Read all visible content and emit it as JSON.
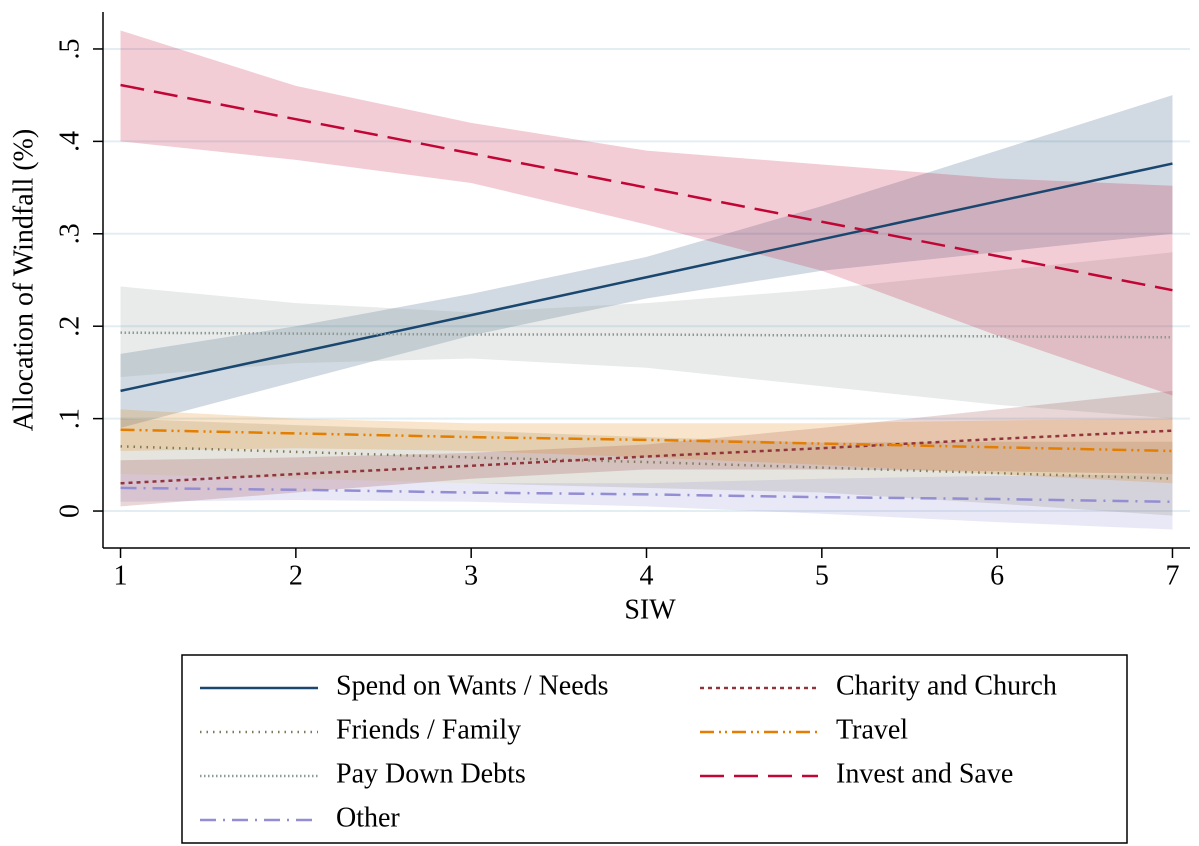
{
  "chart_data": {
    "type": "line",
    "x_label": "SIW",
    "y_label": "Allocation of Windfall (%)",
    "x": [
      1,
      2,
      3,
      4,
      5,
      6,
      7
    ],
    "xlim": [
      0.9,
      7.1
    ],
    "xticks": [
      1,
      2,
      3,
      4,
      5,
      6,
      7
    ],
    "ylim": [
      -0.04,
      0.54
    ],
    "yticks": [
      0,
      {
        "value": 0.1,
        "label": ".1"
      },
      {
        "value": 0.2,
        "label": ".2"
      },
      {
        "value": 0.3,
        "label": ".3"
      },
      {
        "value": 0.4,
        "label": ".4"
      },
      {
        "value": 0.5,
        "label": ".5"
      }
    ],
    "grid": true,
    "legend": "bottom",
    "series": [
      {
        "name": "Spend on Wants / Needs",
        "color": "#1a476f",
        "style": "solid",
        "values": [
          0.13,
          0.171,
          0.212,
          0.253,
          0.294,
          0.335,
          0.376
        ],
        "ci_lower": [
          0.09,
          0.14,
          0.19,
          0.23,
          0.26,
          0.28,
          0.3
        ],
        "ci_upper": [
          0.17,
          0.2,
          0.235,
          0.275,
          0.33,
          0.39,
          0.45
        ]
      },
      {
        "name": "Friends / Family",
        "color": "#7d7a5a",
        "style": "sparse-dot",
        "values": [
          0.07,
          0.064,
          0.058,
          0.053,
          0.047,
          0.041,
          0.035
        ],
        "ci_lower": [
          0.04,
          0.035,
          0.03,
          0.025,
          0.02,
          0.008,
          -0.005
        ],
        "ci_upper": [
          0.1,
          0.093,
          0.087,
          0.08,
          0.074,
          0.075,
          0.075
        ]
      },
      {
        "name": "Pay Down Debts",
        "color": "#8a9a94",
        "style": "dot",
        "values": [
          0.193,
          0.192,
          0.191,
          0.191,
          0.19,
          0.189,
          0.188
        ],
        "ci_lower": [
          0.145,
          0.16,
          0.165,
          0.155,
          0.135,
          0.115,
          0.1
        ],
        "ci_upper": [
          0.243,
          0.225,
          0.215,
          0.225,
          0.24,
          0.26,
          0.28
        ]
      },
      {
        "name": "Other",
        "color": "#938dd2",
        "style": "longdash-dot",
        "values": [
          0.025,
          0.023,
          0.02,
          0.018,
          0.015,
          0.013,
          0.01
        ],
        "ci_lower": [
          0.01,
          0.012,
          0.01,
          0.005,
          -0.003,
          -0.012,
          -0.02
        ],
        "ci_upper": [
          0.04,
          0.035,
          0.03,
          0.03,
          0.035,
          0.038,
          0.04
        ]
      },
      {
        "name": "Charity and Church",
        "color": "#90353b",
        "style": "shortdash",
        "values": [
          0.03,
          0.04,
          0.049,
          0.059,
          0.068,
          0.078,
          0.087
        ],
        "ci_lower": [
          0.005,
          0.02,
          0.035,
          0.045,
          0.045,
          0.043,
          0.04
        ],
        "ci_upper": [
          0.055,
          0.058,
          0.063,
          0.072,
          0.09,
          0.11,
          0.13
        ]
      },
      {
        "name": "Travel",
        "color": "#e37e00",
        "style": "longdash-dot-dot",
        "values": [
          0.088,
          0.084,
          0.08,
          0.077,
          0.073,
          0.069,
          0.065
        ],
        "ci_lower": [
          0.065,
          0.068,
          0.065,
          0.058,
          0.05,
          0.04,
          0.03
        ],
        "ci_upper": [
          0.11,
          0.1,
          0.095,
          0.095,
          0.095,
          0.098,
          0.1
        ]
      },
      {
        "name": "Invest and Save",
        "color": "#c10534",
        "style": "longdash",
        "values": [
          0.461,
          0.424,
          0.387,
          0.35,
          0.313,
          0.276,
          0.239
        ],
        "ci_lower": [
          0.4,
          0.38,
          0.355,
          0.31,
          0.26,
          0.19,
          0.125
        ],
        "ci_upper": [
          0.52,
          0.46,
          0.42,
          0.39,
          0.375,
          0.36,
          0.352
        ]
      }
    ]
  }
}
